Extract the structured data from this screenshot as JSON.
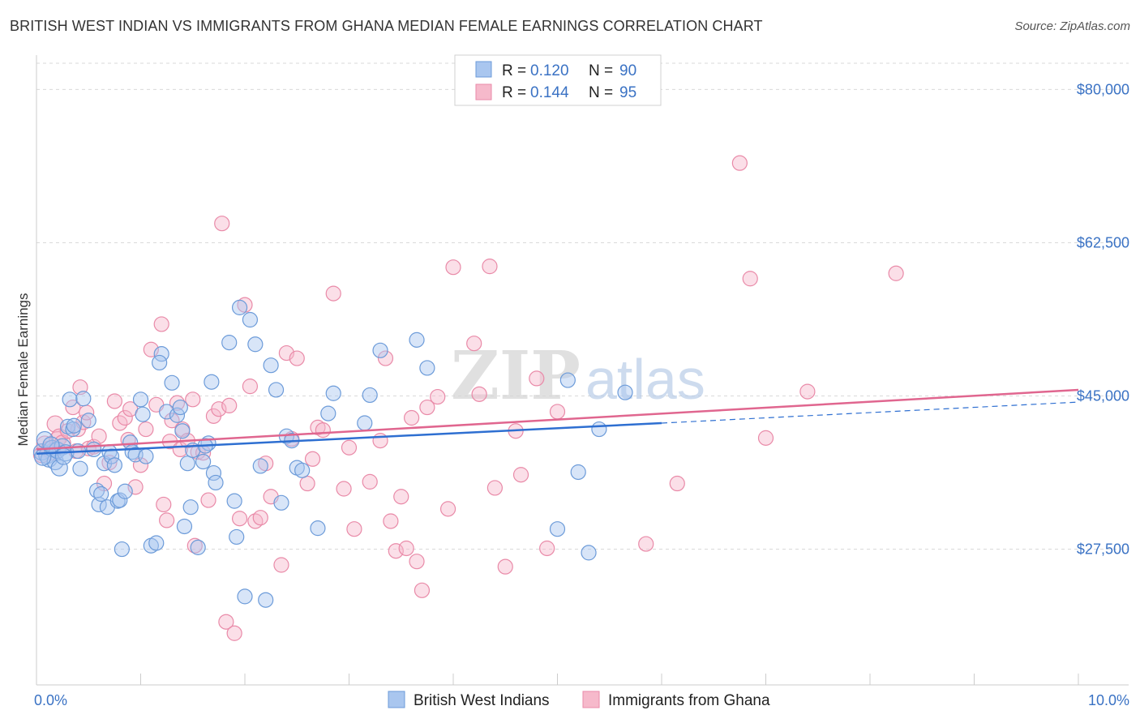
{
  "title": "BRITISH WEST INDIAN VS IMMIGRANTS FROM GHANA MEDIAN FEMALE EARNINGS CORRELATION CHART",
  "source": "Source: ZipAtlas.com",
  "watermark": {
    "zip": "ZIP",
    "atlas": "atlas"
  },
  "colors": {
    "blue_fill": "#a9c6ef",
    "blue_stroke": "#6c9bd9",
    "blue_line": "#2e6fd1",
    "pink_fill": "#f6b9cb",
    "pink_stroke": "#e98aa8",
    "pink_line": "#e0668f",
    "axis_text": "#3a72c4",
    "grid": "#d9d9d9"
  },
  "chart_data": {
    "type": "scatter",
    "title": "BRITISH WEST INDIAN VS IMMIGRANTS FROM GHANA MEDIAN FEMALE EARNINGS CORRELATION CHART",
    "ylabel": "Median Female Earnings",
    "xlabel": "",
    "xlim": [
      0,
      10
    ],
    "ylim": [
      12000,
      83000
    ],
    "x_tick_labels": [
      "0.0%",
      "10.0%"
    ],
    "y_ticks": [
      27500,
      45000,
      62500,
      80000
    ],
    "y_tick_labels": [
      "$27,500",
      "$45,000",
      "$62,500",
      "$80,000"
    ],
    "legend": [
      {
        "r_label": "R =",
        "r_value": "0.120",
        "n_label": "N =",
        "n_value": "90"
      },
      {
        "r_label": "R =",
        "r_value": "0.144",
        "n_label": "N =",
        "n_value": "95"
      }
    ],
    "series": [
      {
        "name": "British West Indians",
        "trend": {
          "x0": 0.0,
          "y0": 38400,
          "x1": 6.0,
          "y1": 41900,
          "dash_to_x": 10.0,
          "dash_to_y": 44300
        },
        "points": [
          [
            0.05,
            38600
          ],
          [
            0.08,
            40000
          ],
          [
            0.1,
            38200
          ],
          [
            0.12,
            37800
          ],
          [
            0.15,
            39000
          ],
          [
            0.18,
            37500
          ],
          [
            0.2,
            38800
          ],
          [
            0.22,
            36800
          ],
          [
            0.25,
            39200
          ],
          [
            0.28,
            38500
          ],
          [
            0.3,
            41500
          ],
          [
            0.32,
            44600
          ],
          [
            0.35,
            41200
          ],
          [
            0.4,
            38700
          ],
          [
            0.42,
            36700
          ],
          [
            0.45,
            44700
          ],
          [
            0.5,
            42200
          ],
          [
            0.55,
            38900
          ],
          [
            0.58,
            34200
          ],
          [
            0.6,
            32600
          ],
          [
            0.62,
            33800
          ],
          [
            0.65,
            37300
          ],
          [
            0.68,
            32300
          ],
          [
            0.7,
            38600
          ],
          [
            0.72,
            38100
          ],
          [
            0.75,
            37100
          ],
          [
            0.78,
            33000
          ],
          [
            0.8,
            33100
          ],
          [
            0.82,
            27500
          ],
          [
            0.85,
            34100
          ],
          [
            0.9,
            39700
          ],
          [
            0.92,
            38600
          ],
          [
            0.95,
            38300
          ],
          [
            1.0,
            44600
          ],
          [
            1.02,
            42900
          ],
          [
            1.05,
            38100
          ],
          [
            1.1,
            27900
          ],
          [
            1.15,
            28200
          ],
          [
            1.2,
            49800
          ],
          [
            1.25,
            43200
          ],
          [
            1.3,
            46500
          ],
          [
            1.35,
            42800
          ],
          [
            1.38,
            43700
          ],
          [
            1.4,
            41000
          ],
          [
            1.42,
            30100
          ],
          [
            1.45,
            37300
          ],
          [
            1.48,
            32300
          ],
          [
            1.5,
            38800
          ],
          [
            1.55,
            27700
          ],
          [
            1.6,
            37500
          ],
          [
            1.65,
            39600
          ],
          [
            1.68,
            46600
          ],
          [
            1.7,
            36200
          ],
          [
            1.72,
            35100
          ],
          [
            1.85,
            51100
          ],
          [
            1.9,
            33000
          ],
          [
            1.92,
            28900
          ],
          [
            1.95,
            55100
          ],
          [
            2.0,
            22100
          ],
          [
            2.05,
            53700
          ],
          [
            2.1,
            50900
          ],
          [
            2.15,
            37000
          ],
          [
            2.2,
            21700
          ],
          [
            2.25,
            48500
          ],
          [
            2.3,
            45700
          ],
          [
            2.35,
            32800
          ],
          [
            2.4,
            40400
          ],
          [
            2.45,
            39900
          ],
          [
            2.5,
            36800
          ],
          [
            2.7,
            29900
          ],
          [
            2.8,
            43000
          ],
          [
            2.85,
            45300
          ],
          [
            3.15,
            41900
          ],
          [
            3.2,
            45100
          ],
          [
            3.3,
            50200
          ],
          [
            3.65,
            51400
          ],
          [
            3.75,
            48200
          ],
          [
            5.0,
            29800
          ],
          [
            5.1,
            46800
          ],
          [
            5.2,
            36300
          ],
          [
            5.3,
            27100
          ],
          [
            5.4,
            41200
          ],
          [
            5.65,
            45400
          ],
          [
            0.06,
            38000
          ],
          [
            0.14,
            39400
          ],
          [
            0.26,
            38100
          ],
          [
            0.36,
            41600
          ],
          [
            1.18,
            48800
          ],
          [
            1.62,
            39300
          ],
          [
            2.55,
            36500
          ]
        ]
      },
      {
        "name": "Immigrants from Ghana",
        "trend": {
          "x0": 0.0,
          "y0": 38900,
          "x1": 10.0,
          "y1": 45700
        },
        "points": [
          [
            0.05,
            38300
          ],
          [
            0.08,
            39500
          ],
          [
            0.12,
            38900
          ],
          [
            0.15,
            38600
          ],
          [
            0.18,
            41800
          ],
          [
            0.2,
            40000
          ],
          [
            0.22,
            40300
          ],
          [
            0.25,
            39600
          ],
          [
            0.3,
            41000
          ],
          [
            0.35,
            43700
          ],
          [
            0.38,
            38700
          ],
          [
            0.4,
            41200
          ],
          [
            0.42,
            46000
          ],
          [
            0.45,
            42000
          ],
          [
            0.48,
            43100
          ],
          [
            0.5,
            39000
          ],
          [
            0.55,
            39200
          ],
          [
            0.6,
            40400
          ],
          [
            0.65,
            35000
          ],
          [
            0.7,
            37400
          ],
          [
            0.75,
            44400
          ],
          [
            0.8,
            41900
          ],
          [
            0.85,
            42500
          ],
          [
            0.88,
            40000
          ],
          [
            0.9,
            43500
          ],
          [
            0.95,
            34600
          ],
          [
            1.0,
            37100
          ],
          [
            1.05,
            41200
          ],
          [
            1.1,
            50300
          ],
          [
            1.15,
            44000
          ],
          [
            1.2,
            53200
          ],
          [
            1.22,
            32600
          ],
          [
            1.25,
            30800
          ],
          [
            1.28,
            39800
          ],
          [
            1.3,
            42200
          ],
          [
            1.35,
            44200
          ],
          [
            1.38,
            38900
          ],
          [
            1.4,
            41200
          ],
          [
            1.45,
            39900
          ],
          [
            1.5,
            44600
          ],
          [
            1.52,
            27900
          ],
          [
            1.55,
            38600
          ],
          [
            1.6,
            38500
          ],
          [
            1.65,
            33100
          ],
          [
            1.7,
            42700
          ],
          [
            1.75,
            43500
          ],
          [
            1.78,
            64700
          ],
          [
            1.82,
            19200
          ],
          [
            1.85,
            43900
          ],
          [
            1.9,
            17900
          ],
          [
            1.95,
            31000
          ],
          [
            2.0,
            55400
          ],
          [
            2.05,
            46100
          ],
          [
            2.1,
            30700
          ],
          [
            2.15,
            31100
          ],
          [
            2.2,
            37300
          ],
          [
            2.25,
            33500
          ],
          [
            2.35,
            25700
          ],
          [
            2.4,
            49900
          ],
          [
            2.45,
            40100
          ],
          [
            2.5,
            49300
          ],
          [
            2.6,
            35000
          ],
          [
            2.65,
            37800
          ],
          [
            2.7,
            41400
          ],
          [
            2.75,
            41100
          ],
          [
            2.85,
            56700
          ],
          [
            2.95,
            34400
          ],
          [
            3.0,
            39100
          ],
          [
            3.05,
            29800
          ],
          [
            3.2,
            35200
          ],
          [
            3.3,
            39900
          ],
          [
            3.35,
            49300
          ],
          [
            3.4,
            30700
          ],
          [
            3.45,
            27300
          ],
          [
            3.5,
            33500
          ],
          [
            3.55,
            27600
          ],
          [
            3.6,
            42500
          ],
          [
            3.65,
            26100
          ],
          [
            3.7,
            22800
          ],
          [
            3.75,
            43700
          ],
          [
            3.85,
            44900
          ],
          [
            3.95,
            32100
          ],
          [
            4.0,
            59700
          ],
          [
            4.2,
            51000
          ],
          [
            4.25,
            45200
          ],
          [
            4.35,
            59800
          ],
          [
            4.4,
            34500
          ],
          [
            4.6,
            41000
          ],
          [
            4.65,
            36000
          ],
          [
            4.8,
            47000
          ],
          [
            4.9,
            27600
          ],
          [
            5.85,
            28100
          ],
          [
            6.15,
            35000
          ],
          [
            6.75,
            71600
          ],
          [
            6.85,
            58400
          ]
        ],
        "extra_points": [
          [
            7.0,
            40200
          ],
          [
            7.4,
            45500
          ],
          [
            8.25,
            59000
          ],
          [
            4.5,
            25500
          ],
          [
            5.0,
            43200
          ]
        ]
      }
    ]
  },
  "bottom_legend": [
    {
      "label": "British West Indians",
      "color": "blue"
    },
    {
      "label": "Immigrants from Ghana",
      "color": "pink"
    }
  ]
}
